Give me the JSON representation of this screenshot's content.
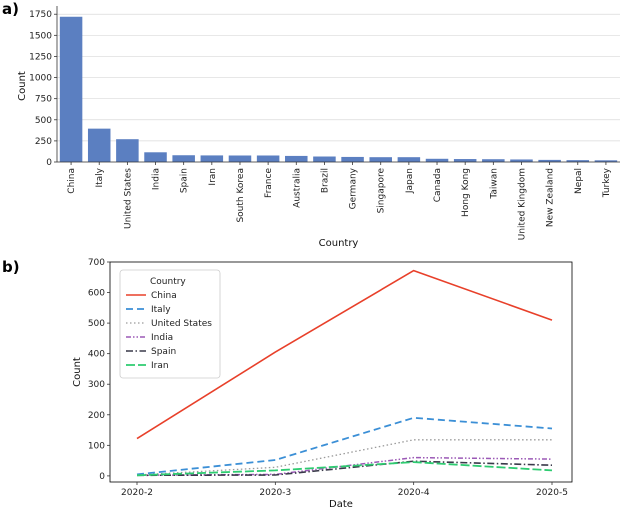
{
  "colors": {
    "bar": "#5b7fc1",
    "China": "#e8402a",
    "Italy": "#3b8fd6",
    "United States": "#9a9a9a",
    "India": "#9b59b6",
    "Spain": "#3a3a4a",
    "Iran": "#2ecc71"
  },
  "panel_a_label": "a)",
  "panel_b_label": "b)",
  "chart_data": [
    {
      "type": "bar",
      "categories": [
        "China",
        "Italy",
        "United States",
        "India",
        "Spain",
        "Iran",
        "South Korea",
        "France",
        "Australia",
        "Brazil",
        "Germany",
        "Singapore",
        "Japan",
        "Canada",
        "Hong Kong",
        "Taiwan",
        "United Kingdom",
        "New Zealand",
        "Nepal",
        "Turkey"
      ],
      "values": [
        1720,
        395,
        270,
        115,
        80,
        78,
        77,
        77,
        72,
        65,
        60,
        57,
        57,
        38,
        35,
        33,
        30,
        25,
        22,
        20
      ],
      "title": "",
      "xlabel": "Country",
      "ylabel": "Count",
      "ylim": [
        0,
        1800
      ],
      "yticks": [
        "0",
        "250",
        "500",
        "750",
        "1000",
        "1250",
        "1500",
        "1750"
      ],
      "grid": true
    },
    {
      "type": "line",
      "x": [
        "2020-2",
        "2020-3",
        "2020-4",
        "2020-5"
      ],
      "series": [
        {
          "name": "China",
          "values": [
            122,
            405,
            672,
            510
          ],
          "style": "solid"
        },
        {
          "name": "Italy",
          "values": [
            5,
            52,
            190,
            155
          ],
          "style": "dashed"
        },
        {
          "name": "United States",
          "values": [
            3,
            28,
            118,
            118
          ],
          "style": "dotted"
        },
        {
          "name": "India",
          "values": [
            2,
            5,
            60,
            55
          ],
          "style": "dashdotdot"
        },
        {
          "name": "Spain",
          "values": [
            2,
            3,
            48,
            35
          ],
          "style": "dashdot"
        },
        {
          "name": "Iran",
          "values": [
            2,
            18,
            45,
            18
          ],
          "style": "longdash"
        }
      ],
      "title": "",
      "xlabel": "Date",
      "ylabel": "Count",
      "ylim": [
        -20,
        700
      ],
      "yticks": [
        "0",
        "100",
        "200",
        "300",
        "400",
        "500",
        "600",
        "700"
      ],
      "legend_title": "Country",
      "legend_position": "top-left"
    }
  ]
}
